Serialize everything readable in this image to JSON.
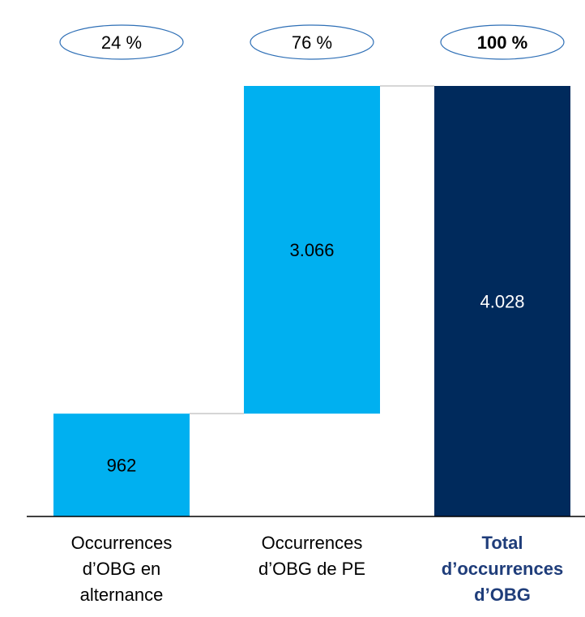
{
  "chart_data": {
    "type": "bar",
    "subtype": "waterfall",
    "categories": [
      "Occurrences d’OBG en alternance",
      "Occurrences d’OBG de PE",
      "Total d’occurrences d’OBG"
    ],
    "category_lines": [
      [
        "Occurrences",
        "d’OBG en",
        "alternance"
      ],
      [
        "Occurrences",
        "d’OBG de PE"
      ],
      [
        "Total",
        "d’occurrences",
        "d’OBG"
      ]
    ],
    "values": [
      962,
      3066,
      4028
    ],
    "value_labels": [
      "962",
      "3.066",
      "4.028"
    ],
    "percent_labels": [
      "24 %",
      "76 %",
      "100 %"
    ],
    "percent_bold": [
      false,
      false,
      true
    ],
    "total_index": 2,
    "ylim": [
      0,
      4028
    ],
    "grid": false,
    "colors": {
      "increment": "#00b0f0",
      "total": "#002a5c",
      "bar_label_on_light": "#000000",
      "bar_label_on_dark": "#ffffff",
      "axis": "#000000",
      "connector": "#c8c8c8",
      "ellipse_stroke": "#2e6fb6",
      "category_text": "#000000",
      "total_category_text": "#1f3d7a",
      "percent_text": "#000000"
    }
  }
}
